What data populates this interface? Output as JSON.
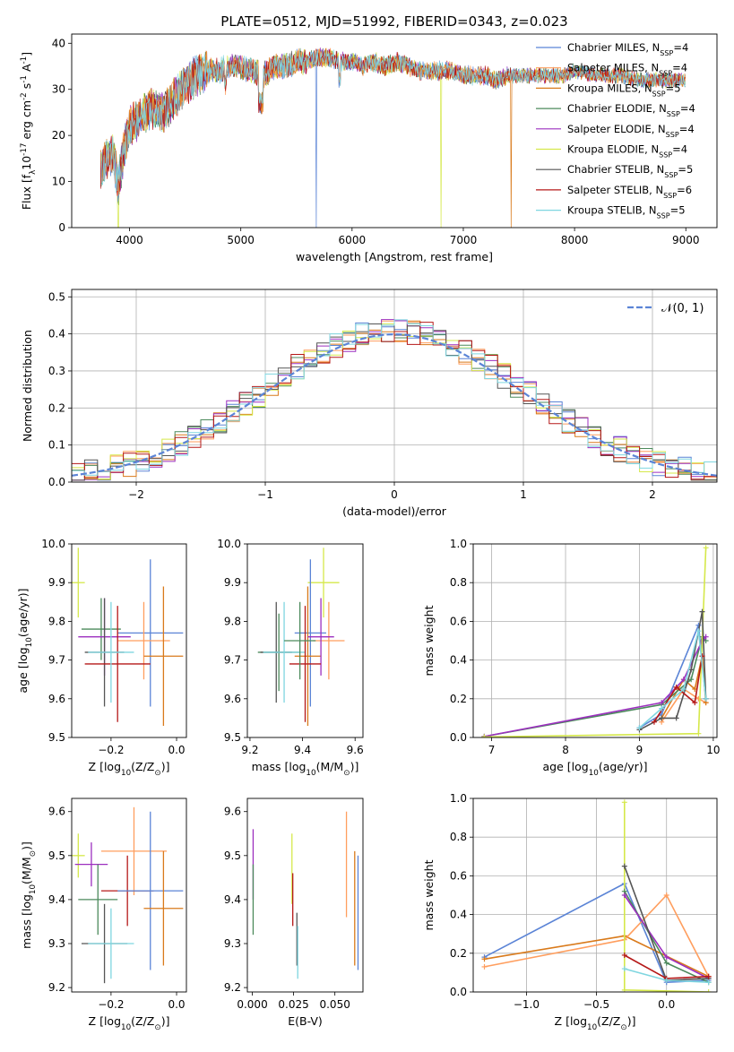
{
  "chart_data": [
    {
      "id": "spectrum",
      "type": "line",
      "title": "PLATE=0512, MJD=51992, FIBERID=0343, z=0.023",
      "xlabel": "wavelength [Angstrom, rest frame]",
      "ylabel": "Flux [f$_\\lambda$10$^{-17}$ erg cm$^{-2}$ s$^{-1}$ A$^{-1}$]",
      "xlim": [
        3480,
        9280
      ],
      "ylim": [
        0,
        42
      ],
      "xticks": [
        4000,
        5000,
        6000,
        7000,
        8000,
        9000
      ],
      "yticks": [
        0,
        10,
        20,
        30,
        40
      ],
      "legend_position": "top-right",
      "grid": false,
      "continuum": {
        "x": [
          3750,
          3800,
          3850,
          3900,
          3950,
          4000,
          4100,
          4200,
          4300,
          4400,
          4500,
          4600,
          4700,
          4800,
          4900,
          5000,
          5100,
          5200,
          5300,
          5400,
          5500,
          5600,
          5700,
          5800,
          5900,
          6000,
          6100,
          6200,
          6300,
          6400,
          6500,
          6600,
          6700,
          6800,
          6900,
          7000,
          7100,
          7200,
          7300,
          7400,
          7500,
          7600,
          7700,
          7800,
          7900,
          8000,
          8200,
          8400,
          8600,
          8800,
          9000
        ],
        "y": [
          13,
          15,
          16,
          9,
          17,
          22,
          24,
          26,
          25,
          28,
          31,
          33,
          34,
          34,
          35,
          35,
          34,
          33,
          35,
          35,
          36,
          36,
          37,
          37,
          36,
          36,
          35,
          36,
          35,
          36,
          35,
          34,
          34,
          34,
          34,
          33,
          33,
          33,
          32,
          33,
          33,
          33,
          33,
          33,
          33,
          34,
          33,
          33,
          32,
          32,
          32
        ]
      },
      "dropouts": [
        {
          "series": "Chabrier MILES, N$_{SSP}$=4",
          "x": 5680
        },
        {
          "series": "Kroupa ELODIE, N$_{SSP}$=4",
          "x": 6800
        },
        {
          "series": "Kroupa MILES, N$_{SSP}$=5",
          "x": 7430
        },
        {
          "series": "Kroupa ELODIE, N$_{SSP}$=4",
          "x": 3900
        }
      ],
      "series": [
        {
          "name": "Chabrier MILES, N$_{SSP}$=4",
          "color": "#5b84d6"
        },
        {
          "name": "Salpeter MILES, N$_{SSP}$=4",
          "color": "#ff9e5e"
        },
        {
          "name": "Kroupa MILES, N$_{SSP}$=5",
          "color": "#d97a1b"
        },
        {
          "name": "Chabrier ELODIE, N$_{SSP}$=4",
          "color": "#4c8a5c"
        },
        {
          "name": "Salpeter ELODIE, N$_{SSP}$=4",
          "color": "#9c2fbf"
        },
        {
          "name": "Kroupa ELODIE, N$_{SSP}$=4",
          "color": "#d5e84a"
        },
        {
          "name": "Chabrier STELIB, N$_{SSP}$=5",
          "color": "#555555"
        },
        {
          "name": "Salpeter STELIB, N$_{SSP}$=6",
          "color": "#b51818"
        },
        {
          "name": "Kroupa STELIB, N$_{SSP}$=5",
          "color": "#7fd6e0"
        }
      ]
    },
    {
      "id": "residuals",
      "type": "step",
      "xlabel": "(data-model)/error",
      "ylabel": "Normed distribution",
      "xlim": [
        -2.5,
        2.5
      ],
      "ylim": [
        0,
        0.52
      ],
      "xticks": [
        -2,
        -1,
        0,
        1,
        2
      ],
      "yticks": [
        0.0,
        0.1,
        0.2,
        0.3,
        0.4,
        0.5
      ],
      "ytick_labels": [
        "0.0",
        "0.1",
        "0.2",
        "0.3",
        "0.4",
        "0.5"
      ],
      "xtick_labels": [
        "−2",
        "−1",
        "0",
        "1",
        "2"
      ],
      "grid": true,
      "legend_position": "top-right",
      "reference": {
        "name": "$\\mathcal{N}(0,1)$",
        "label": "𝒩(0, 1)",
        "color": "#5b84d6",
        "style": "dashed"
      },
      "bin_width": 0.1
    },
    {
      "id": "age_vs_Z",
      "type": "errorbar",
      "xlabel": "Z [log$_{10}$(Z/Z$_\\odot$)]",
      "ylabel": "age  [log$_{10}$(age/yr)]",
      "xlim": [
        -0.32,
        0.03
      ],
      "ylim": [
        9.5,
        10.0
      ],
      "xticks": [
        -0.2,
        0.0
      ],
      "xtick_labels": [
        "−0.2",
        "0.0"
      ],
      "yticks": [
        9.5,
        9.6,
        9.7,
        9.8,
        9.9,
        10.0
      ],
      "ytick_labels": [
        "9.5",
        "9.6",
        "9.7",
        "9.8",
        "9.9",
        "10.0"
      ],
      "points": [
        {
          "color": "#d5e84a",
          "x": -0.3,
          "y": 9.9,
          "xerr": 0.02,
          "yerr": 0.09
        },
        {
          "color": "#4c8a5c",
          "x": -0.23,
          "y": 9.78,
          "xerr": 0.06,
          "yerr": 0.08
        },
        {
          "color": "#9c2fbf",
          "x": -0.22,
          "y": 9.76,
          "xerr": 0.08,
          "yerr": 0.1
        },
        {
          "color": "#555555",
          "x": -0.22,
          "y": 9.72,
          "xerr": 0.06,
          "yerr": 0.14
        },
        {
          "color": "#5b84d6",
          "x": -0.08,
          "y": 9.77,
          "xerr": 0.1,
          "yerr": 0.19
        },
        {
          "color": "#ff9e5e",
          "x": -0.1,
          "y": 9.75,
          "xerr": 0.08,
          "yerr": 0.1
        },
        {
          "color": "#d97a1b",
          "x": -0.04,
          "y": 9.71,
          "xerr": 0.06,
          "yerr": 0.18
        },
        {
          "color": "#b51818",
          "x": -0.18,
          "y": 9.69,
          "xerr": 0.1,
          "yerr": 0.15
        },
        {
          "color": "#7fd6e0",
          "x": -0.2,
          "y": 9.72,
          "xerr": 0.07,
          "yerr": 0.13
        }
      ]
    },
    {
      "id": "age_vs_mass",
      "type": "errorbar",
      "xlabel": "mass [log$_{10}$(M/M$_\\odot$)]",
      "xlim": [
        9.19,
        9.63
      ],
      "ylim": [
        9.5,
        10.0
      ],
      "xticks": [
        9.2,
        9.4,
        9.6
      ],
      "xtick_labels": [
        "9.2",
        "9.4",
        "9.6"
      ],
      "yticks": [
        9.5,
        9.6,
        9.7,
        9.8,
        9.9,
        10.0
      ],
      "ytick_labels": [
        "9.5",
        "9.6",
        "9.7",
        "9.8",
        "9.9",
        "10.0"
      ],
      "points": [
        {
          "color": "#d5e84a",
          "x": 9.48,
          "y": 9.9,
          "xerr": 0.06,
          "yerr": 0.09
        },
        {
          "color": "#4c8a5c",
          "x": 9.31,
          "y": 9.72,
          "xerr": 0.08,
          "yerr": 0.1
        },
        {
          "color": "#555555",
          "x": 9.3,
          "y": 9.72,
          "xerr": 0.06,
          "yerr": 0.13
        },
        {
          "color": "#7fd6e0",
          "x": 9.33,
          "y": 9.72,
          "xerr": 0.08,
          "yerr": 0.13
        },
        {
          "color": "#5b84d6",
          "x": 9.43,
          "y": 9.77,
          "xerr": 0.06,
          "yerr": 0.19
        },
        {
          "color": "#ff9e5e",
          "x": 9.5,
          "y": 9.75,
          "xerr": 0.06,
          "yerr": 0.1
        },
        {
          "color": "#d97a1b",
          "x": 9.42,
          "y": 9.71,
          "xerr": 0.05,
          "yerr": 0.18
        },
        {
          "color": "#9c2fbf",
          "x": 9.47,
          "y": 9.76,
          "xerr": 0.05,
          "yerr": 0.1
        },
        {
          "color": "#b51818",
          "x": 9.41,
          "y": 9.69,
          "xerr": 0.06,
          "yerr": 0.15
        },
        {
          "color": "#4c8a5c",
          "x": 9.39,
          "y": 9.75,
          "xerr": 0.06,
          "yerr": 0.1
        }
      ]
    },
    {
      "id": "weight_vs_age",
      "type": "line",
      "xlabel": "age  [log$_{10}$(age/yr)]",
      "ylabel": "mass weight",
      "xlim": [
        6.75,
        10.05
      ],
      "ylim": [
        0,
        1.0
      ],
      "xticks": [
        7,
        8,
        9,
        10
      ],
      "yticks": [
        0.0,
        0.2,
        0.4,
        0.6,
        0.8,
        1.0
      ],
      "ytick_labels": [
        "0.0",
        "0.2",
        "0.4",
        "0.6",
        "0.8",
        "1.0"
      ],
      "grid": true,
      "series": [
        {
          "color": "#5b84d6",
          "x": [
            9.0,
            9.3,
            9.8,
            9.9
          ],
          "y": [
            0.05,
            0.12,
            0.58,
            0.2
          ]
        },
        {
          "color": "#ff9e5e",
          "x": [
            9.3,
            9.6,
            9.8,
            9.9
          ],
          "y": [
            0.08,
            0.25,
            0.2,
            0.18
          ]
        },
        {
          "color": "#d97a1b",
          "x": [
            9.3,
            9.6,
            9.75,
            9.85,
            9.9
          ],
          "y": [
            0.1,
            0.3,
            0.25,
            0.42,
            0.18
          ]
        },
        {
          "color": "#4c8a5c",
          "x": [
            6.9,
            9.3,
            9.7,
            9.85,
            9.9
          ],
          "y": [
            0.005,
            0.17,
            0.3,
            0.52,
            0.5
          ]
        },
        {
          "color": "#9c2fbf",
          "x": [
            6.9,
            9.3,
            9.6,
            9.85,
            9.9
          ],
          "y": [
            0.005,
            0.18,
            0.3,
            0.5,
            0.52
          ]
        },
        {
          "color": "#d5e84a",
          "x": [
            6.9,
            9.8,
            9.9
          ],
          "y": [
            0.003,
            0.02,
            0.98
          ]
        },
        {
          "color": "#555555",
          "x": [
            9.0,
            9.3,
            9.5,
            9.7,
            9.85,
            9.9
          ],
          "y": [
            0.04,
            0.1,
            0.1,
            0.35,
            0.65,
            0.2
          ]
        },
        {
          "color": "#b51818",
          "x": [
            9.2,
            9.5,
            9.75,
            9.85
          ],
          "y": [
            0.08,
            0.26,
            0.18,
            0.42
          ]
        },
        {
          "color": "#7fd6e0",
          "x": [
            9.0,
            9.3,
            9.6,
            9.8,
            9.9
          ],
          "y": [
            0.05,
            0.15,
            0.25,
            0.55,
            0.2
          ]
        }
      ]
    },
    {
      "id": "mass_vs_Z",
      "type": "errorbar",
      "xlabel": "Z [log$_{10}$(Z/Z$_\\odot$)]",
      "ylabel": "mass [log$_{10}$(M/M$_\\odot$)]",
      "xlim": [
        -0.32,
        0.03
      ],
      "ylim": [
        9.19,
        9.63
      ],
      "xticks": [
        -0.2,
        0.0
      ],
      "xtick_labels": [
        "−0.2",
        "0.0"
      ],
      "yticks": [
        9.2,
        9.3,
        9.4,
        9.5,
        9.6
      ],
      "ytick_labels": [
        "9.2",
        "9.3",
        "9.4",
        "9.5",
        "9.6"
      ],
      "points": [
        {
          "color": "#d5e84a",
          "x": -0.3,
          "y": 9.5,
          "xerr": 0.02,
          "yerr": 0.05
        },
        {
          "color": "#9c2fbf",
          "x": -0.26,
          "y": 9.48,
          "xerr": 0.05,
          "yerr": 0.05
        },
        {
          "color": "#ff9e5e",
          "x": -0.13,
          "y": 9.51,
          "xerr": 0.1,
          "yerr": 0.1
        },
        {
          "color": "#4c8a5c",
          "x": -0.24,
          "y": 9.4,
          "xerr": 0.06,
          "yerr": 0.08
        },
        {
          "color": "#b51818",
          "x": -0.15,
          "y": 9.42,
          "xerr": 0.08,
          "yerr": 0.08
        },
        {
          "color": "#5b84d6",
          "x": -0.08,
          "y": 9.42,
          "xerr": 0.1,
          "yerr": 0.18
        },
        {
          "color": "#d97a1b",
          "x": -0.04,
          "y": 9.38,
          "xerr": 0.06,
          "yerr": 0.13
        },
        {
          "color": "#555555",
          "x": -0.22,
          "y": 9.3,
          "xerr": 0.07,
          "yerr": 0.09
        },
        {
          "color": "#7fd6e0",
          "x": -0.2,
          "y": 9.3,
          "xerr": 0.07,
          "yerr": 0.08
        }
      ]
    },
    {
      "id": "mass_vs_ebv",
      "type": "errorbar",
      "xlabel": "E(B-V)",
      "xlim": [
        -0.003,
        0.067
      ],
      "ylim": [
        9.19,
        9.63
      ],
      "xticks": [
        0.0,
        0.025,
        0.05
      ],
      "xtick_labels": [
        "0.000",
        "0.025",
        "0.050"
      ],
      "yticks": [
        9.2,
        9.3,
        9.4,
        9.5,
        9.6
      ],
      "ytick_labels": [
        "9.2",
        "9.3",
        "9.4",
        "9.5",
        "9.6"
      ],
      "points": [
        {
          "color": "#9c2fbf",
          "x": 0.0005,
          "y": 9.48,
          "xerr": 0,
          "yerr": 0.08
        },
        {
          "color": "#4c8a5c",
          "x": 0.0005,
          "y": 9.4,
          "xerr": 0,
          "yerr": 0.08
        },
        {
          "color": "#d5e84a",
          "x": 0.024,
          "y": 9.47,
          "xerr": 0,
          "yerr": 0.08
        },
        {
          "color": "#b51818",
          "x": 0.0245,
          "y": 9.4,
          "xerr": 0,
          "yerr": 0.06
        },
        {
          "color": "#555555",
          "x": 0.027,
          "y": 9.31,
          "xerr": 0,
          "yerr": 0.06
        },
        {
          "color": "#7fd6e0",
          "x": 0.0275,
          "y": 9.28,
          "xerr": 0,
          "yerr": 0.06
        },
        {
          "color": "#ff9e5e",
          "x": 0.057,
          "y": 9.48,
          "xerr": 0,
          "yerr": 0.12
        },
        {
          "color": "#d97a1b",
          "x": 0.062,
          "y": 9.38,
          "xerr": 0,
          "yerr": 0.13
        },
        {
          "color": "#5b84d6",
          "x": 0.064,
          "y": 9.37,
          "xerr": 0,
          "yerr": 0.13
        }
      ]
    },
    {
      "id": "weight_vs_Z",
      "type": "line",
      "xlabel": "Z [log$_{10}$(Z/Z$_\\odot$)]",
      "ylabel": "mass weight",
      "xlim": [
        -1.38,
        0.36
      ],
      "ylim": [
        0,
        1.0
      ],
      "xticks": [
        -1.0,
        -0.5,
        0.0
      ],
      "xtick_labels": [
        "−1.0",
        "−0.5",
        "0.0"
      ],
      "yticks": [
        0.0,
        0.2,
        0.4,
        0.6,
        0.8,
        1.0
      ],
      "ytick_labels": [
        "0.0",
        "0.2",
        "0.4",
        "0.6",
        "0.8",
        "1.0"
      ],
      "grid": true,
      "series": [
        {
          "color": "#5b84d6",
          "x": [
            -1.3,
            -0.3,
            0.0,
            0.3
          ],
          "y": [
            0.18,
            0.56,
            0.05,
            0.06
          ]
        },
        {
          "color": "#d97a1b",
          "x": [
            -1.3,
            -0.3,
            0.3
          ],
          "y": [
            0.17,
            0.29,
            0.08
          ]
        },
        {
          "color": "#ff9e5e",
          "x": [
            -1.3,
            -0.3,
            0.0,
            0.3
          ],
          "y": [
            0.13,
            0.27,
            0.5,
            0.08
          ]
        },
        {
          "color": "#d5e84a",
          "x": [
            -0.3,
            -0.3,
            0.3
          ],
          "y": [
            0.98,
            0.01,
            0.0
          ]
        },
        {
          "color": "#4c8a5c",
          "x": [
            -0.3,
            0.0,
            0.3
          ],
          "y": [
            0.52,
            0.15,
            0.05
          ]
        },
        {
          "color": "#9c2fbf",
          "x": [
            -0.3,
            0.0,
            0.3
          ],
          "y": [
            0.5,
            0.18,
            0.07
          ]
        },
        {
          "color": "#555555",
          "x": [
            -0.3,
            0.0,
            0.3
          ],
          "y": [
            0.65,
            0.06,
            0.07
          ]
        },
        {
          "color": "#b51818",
          "x": [
            -0.3,
            0.0,
            0.3
          ],
          "y": [
            0.19,
            0.07,
            0.08
          ]
        },
        {
          "color": "#7fd6e0",
          "x": [
            -0.3,
            0.0,
            0.3
          ],
          "y": [
            0.12,
            0.06,
            0.05
          ]
        }
      ]
    }
  ]
}
